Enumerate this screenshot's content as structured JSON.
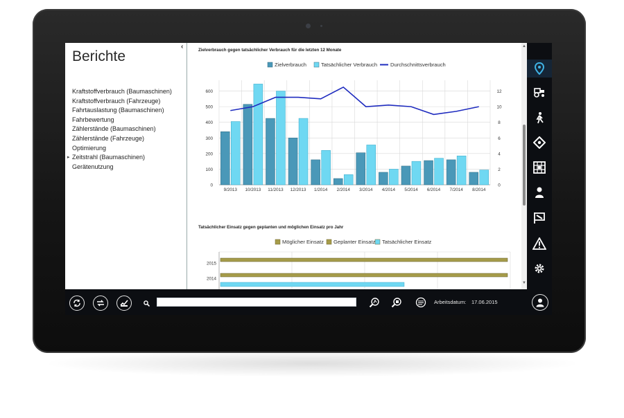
{
  "sidebar": {
    "title": "Berichte",
    "items": [
      {
        "label": "Kraftstoffverbrauch (Baumaschinen)",
        "selected": false
      },
      {
        "label": "Kraftstoffverbrauch (Fahrzeuge)",
        "selected": false
      },
      {
        "label": "Fahrtauslastung (Baumaschinen)",
        "selected": false
      },
      {
        "label": "Fahrbewertung",
        "selected": false
      },
      {
        "label": "Zählerstände (Baumaschinen)",
        "selected": false
      },
      {
        "label": "Zählerstände (Fahrzeuge)",
        "selected": false
      },
      {
        "label": "Optimierung",
        "selected": false
      },
      {
        "label": "Zeitstrahl (Baumaschinen)",
        "selected": true
      },
      {
        "label": "Gerätenutzung",
        "selected": false
      }
    ],
    "collapse_glyph": "‹"
  },
  "rail": {
    "icons": [
      "map-pin-icon",
      "tractor-icon",
      "worker-icon",
      "route-icon",
      "grid-map-icon",
      "person-icon",
      "flag-icon",
      "warning-icon",
      "settings-icon"
    ],
    "active": "map-pin-icon",
    "active_color": "#3fb3e6"
  },
  "bottom_bar": {
    "search_placeholder": "",
    "work_date_label": "Arbeitsdatum:",
    "work_date_value": "17.06.2015"
  },
  "colors": {
    "target": "#4a98b8",
    "actual": "#6fd8f2",
    "average": "#1e2bbf",
    "bar_olive": "#a69c4a",
    "bar_light": "#6fd8f2"
  },
  "chart_data": [
    {
      "type": "bar",
      "title": "Zielverbrauch gegen tatsächlicher Verbrauch für die letzten 12 Monate",
      "categories": [
        "9/2013",
        "10/2013",
        "11/2013",
        "12/2013",
        "1/2014",
        "2/2014",
        "3/2014",
        "4/2014",
        "5/2014",
        "6/2014",
        "7/2014",
        "8/2014"
      ],
      "series": [
        {
          "name": "Zielverbrauch",
          "type": "bar",
          "axis": "left",
          "values": [
            340,
            515,
            425,
            300,
            160,
            40,
            205,
            80,
            120,
            155,
            160,
            80
          ]
        },
        {
          "name": "Tatsächlicher Verbrauch",
          "type": "bar",
          "axis": "left",
          "values": [
            405,
            645,
            600,
            425,
            220,
            65,
            255,
            100,
            150,
            170,
            185,
            95
          ]
        },
        {
          "name": "Durchschnittsverbrauch",
          "type": "line",
          "axis": "right",
          "values": [
            9.5,
            10,
            11.2,
            11.2,
            11,
            12.5,
            10,
            10.2,
            10,
            9,
            9.4,
            10
          ]
        }
      ],
      "yticks_left": [
        "0",
        "100",
        "200",
        "300",
        "400",
        "500",
        "600"
      ],
      "yticks_right": [
        "0",
        "2",
        "4",
        "6",
        "8",
        "10",
        "12"
      ],
      "ylim_left": [
        0,
        660
      ],
      "ylim_right": [
        0,
        13.2
      ],
      "legend": "top",
      "grid": true
    },
    {
      "type": "bar",
      "orientation": "horizontal",
      "title": "Tatsächlicher Einsatz gegen geplanten und möglichen Einsatz pro Jahr",
      "categories": [
        "2015",
        "2014"
      ],
      "series": [
        {
          "name": "Möglicher Einsatz",
          "values": [
            1.0,
            1.0
          ]
        },
        {
          "name": "Geplanter Einsatz",
          "values": [
            1.0,
            1.0
          ]
        },
        {
          "name": "Tatsächlicher Einsatz",
          "values": [
            null,
            0.64
          ]
        }
      ],
      "legend": "top",
      "grid": true
    }
  ]
}
